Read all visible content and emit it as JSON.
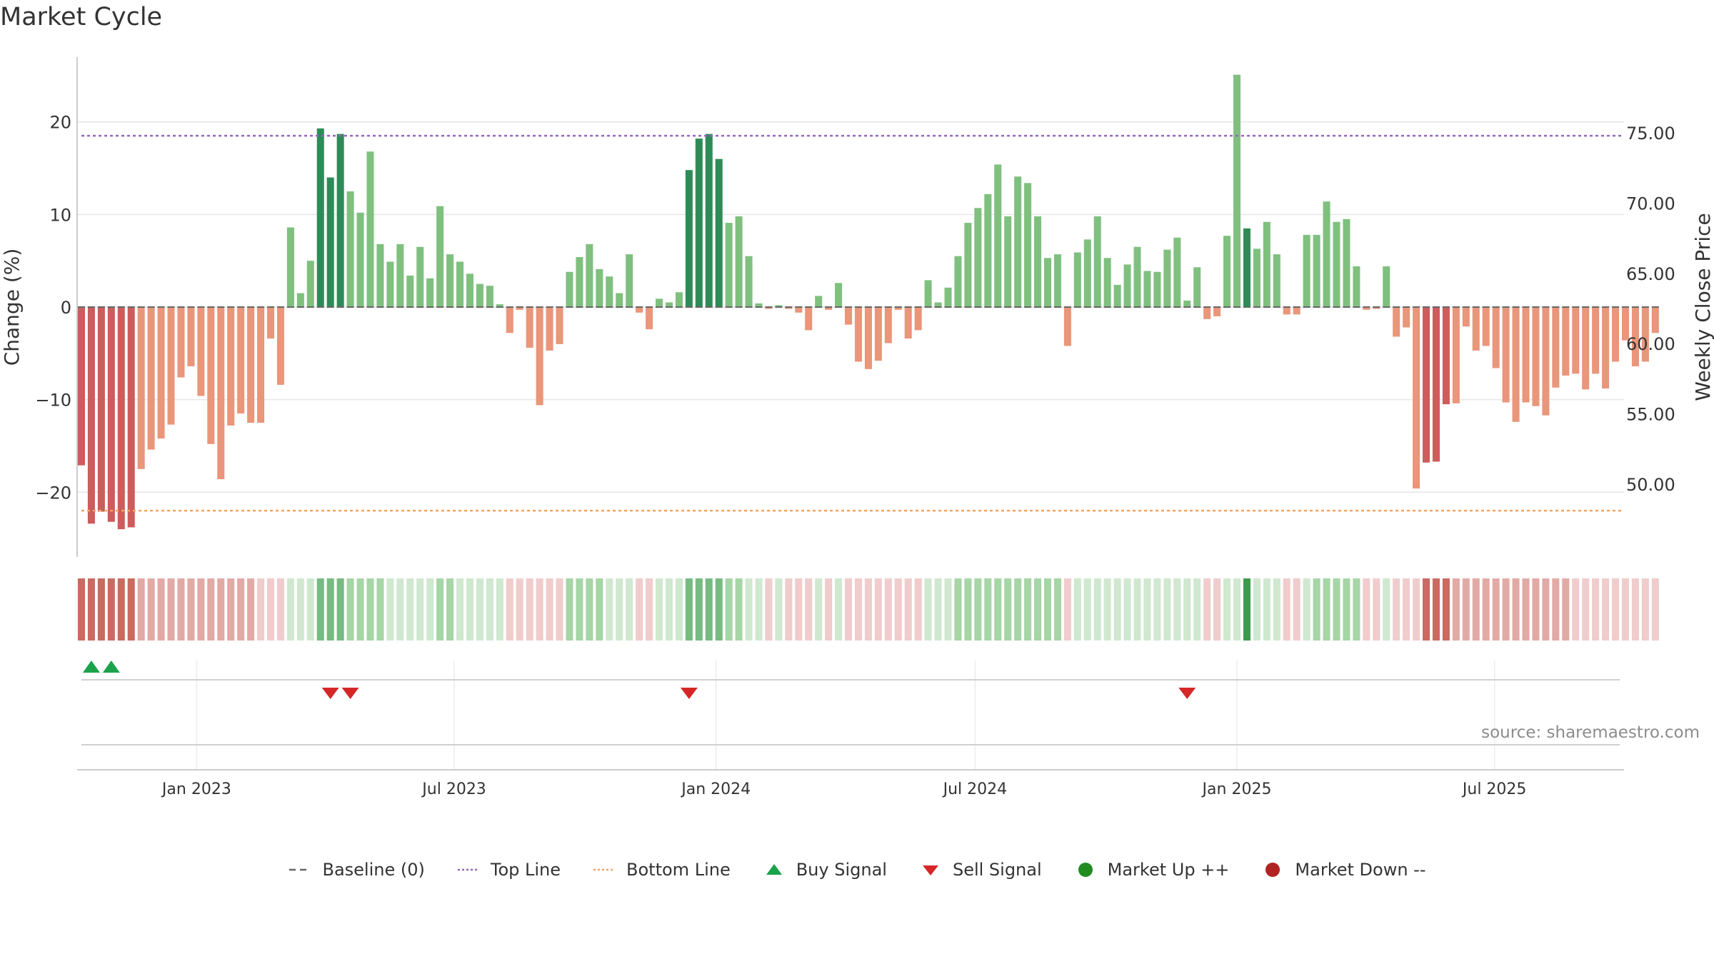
{
  "title": "Market Cycle",
  "source_text": "source: sharemaestro.com",
  "colors": {
    "strong_up": "#2e8b57",
    "up": "#7fc07f",
    "strong_down": "#cd5c5c",
    "down": "#e9967a",
    "top_line": "#9467bd",
    "bottom_line": "#f4a460",
    "baseline": "#666666",
    "buy": "#1aa34a",
    "sell": "#d62728",
    "market_up": "#228b22",
    "market_down": "#b22222",
    "grid": "#e6e6e6"
  },
  "legend": [
    {
      "key": "baseline",
      "label": "Baseline (0)",
      "icon": "dash-line-icon"
    },
    {
      "key": "top_line",
      "label": "Top Line",
      "icon": "dotted-line-icon"
    },
    {
      "key": "bottom_line",
      "label": "Bottom Line",
      "icon": "dotted-line-icon"
    },
    {
      "key": "buy",
      "label": "Buy Signal",
      "icon": "triangle-up-icon"
    },
    {
      "key": "sell",
      "label": "Sell Signal",
      "icon": "triangle-down-icon"
    },
    {
      "key": "market_up",
      "label": "Market Up ++",
      "icon": "circle-icon"
    },
    {
      "key": "market_down",
      "label": "Market Down --",
      "icon": "circle-icon"
    }
  ],
  "chart_data": {
    "type": "bar",
    "ylabel": "Change (%)",
    "y2label": "Weekly Close Price",
    "ylim": [
      -27,
      27
    ],
    "yticks": [
      20,
      10,
      0,
      -10,
      -20
    ],
    "ytick_labels": [
      "20",
      "10",
      "0",
      "−10",
      "−20"
    ],
    "y2lim": [
      44.8,
      80.4
    ],
    "y2ticks": [
      75,
      70,
      65,
      60,
      55,
      50
    ],
    "y2tick_labels": [
      "75.00",
      "70.00",
      "65.00",
      "60.00",
      "55.00",
      "50.00"
    ],
    "top_line": 18.5,
    "bottom_line": -22.0,
    "baseline": 0,
    "grid": true,
    "x_start": "2022-10-09",
    "x_end": "2025-09-30",
    "xtick_dates": [
      "2023-01-01",
      "2023-07-01",
      "2024-01-01",
      "2024-07-01",
      "2025-01-01",
      "2025-07-01"
    ],
    "xtick_labels": [
      "Jan 2023",
      "Jul 2023",
      "Jan 2024",
      "Jul 2024",
      "Jan 2025",
      "Jul 2025"
    ],
    "first_week": "2022-10-12",
    "week_days": 7,
    "values": [
      -17.1,
      -23.4,
      -22.1,
      -23.2,
      -24.0,
      -23.8,
      -17.5,
      -15.4,
      -14.2,
      -12.7,
      -7.6,
      -6.4,
      -9.6,
      -14.8,
      -18.6,
      -12.8,
      -11.5,
      -12.5,
      -12.5,
      -3.4,
      -8.4,
      8.6,
      1.5,
      5.0,
      19.3,
      14.0,
      18.7,
      12.5,
      10.2,
      16.8,
      6.8,
      4.9,
      6.8,
      3.4,
      6.5,
      3.1,
      10.9,
      5.7,
      4.9,
      3.6,
      2.5,
      2.3,
      0.3,
      -2.8,
      -0.3,
      -4.4,
      -10.6,
      -4.7,
      -4.0,
      3.8,
      5.4,
      6.8,
      4.1,
      3.3,
      1.5,
      5.7,
      -0.6,
      -2.4,
      0.9,
      0.5,
      1.6,
      14.8,
      18.2,
      18.7,
      16.0,
      9.1,
      9.8,
      5.5,
      0.4,
      -0.2,
      0.2,
      -0.2,
      -0.6,
      -2.5,
      1.2,
      -0.3,
      2.6,
      -1.9,
      -5.9,
      -6.7,
      -5.8,
      -3.9,
      -0.3,
      -3.4,
      -2.5,
      2.9,
      0.5,
      2.1,
      5.5,
      9.1,
      10.7,
      12.2,
      15.4,
      9.8,
      14.1,
      13.4,
      9.8,
      5.3,
      5.7,
      -4.2,
      5.9,
      7.3,
      9.8,
      5.3,
      2.4,
      4.6,
      6.5,
      3.9,
      3.8,
      6.2,
      7.5,
      0.7,
      4.3,
      -1.3,
      -1.0,
      7.7,
      25.1,
      8.5,
      6.3,
      9.2,
      5.7,
      -0.8,
      -0.8,
      7.8,
      7.8,
      11.4,
      9.2,
      9.5,
      4.4,
      -0.3,
      -0.2,
      4.4,
      -3.2,
      -2.2,
      -19.6,
      -16.8,
      -16.7,
      -10.5,
      -10.4,
      -2.1,
      -4.7,
      -4.2,
      -6.6,
      -10.3,
      -12.4,
      -10.3,
      -10.7,
      -11.7,
      -8.7,
      -7.4,
      -7.2,
      -8.9,
      -7.2,
      -8.8,
      -5.9,
      -3.6,
      -6.4,
      -5.9,
      -2.8
    ],
    "strength": [
      3,
      3,
      3,
      3,
      3,
      3,
      2,
      2,
      2,
      2,
      2,
      2,
      2,
      2,
      2,
      2,
      2,
      2,
      1,
      1,
      1,
      1,
      1,
      1,
      3,
      3,
      3,
      2,
      2,
      2,
      2,
      1,
      1,
      1,
      1,
      1,
      2,
      2,
      1,
      1,
      1,
      1,
      1,
      1,
      1,
      1,
      1,
      1,
      1,
      2,
      2,
      2,
      2,
      1,
      1,
      1,
      1,
      1,
      1,
      1,
      1,
      3,
      3,
      3,
      3,
      2,
      2,
      1,
      1,
      1,
      1,
      1,
      1,
      1,
      1,
      1,
      1,
      1,
      1,
      1,
      1,
      1,
      1,
      1,
      1,
      1,
      1,
      1,
      2,
      2,
      2,
      2,
      2,
      2,
      2,
      2,
      2,
      2,
      2,
      1,
      1,
      1,
      1,
      1,
      1,
      1,
      1,
      1,
      1,
      1,
      1,
      1,
      1,
      1,
      1,
      1,
      1,
      4,
      1,
      1,
      1,
      1,
      1,
      1,
      2,
      2,
      2,
      2,
      2,
      1,
      1,
      1,
      1,
      1,
      1,
      3,
      3,
      3,
      2,
      2,
      2,
      2,
      2,
      2,
      2,
      2,
      2,
      2,
      2,
      2,
      1,
      1,
      1,
      1,
      1,
      1,
      1,
      1,
      1,
      1,
      1
    ],
    "buy_signals": [
      "2022-10-19",
      "2022-11-02"
    ],
    "sell_signals": [
      "2023-04-05",
      "2023-04-19",
      "2023-12-13",
      "2024-11-27"
    ]
  }
}
